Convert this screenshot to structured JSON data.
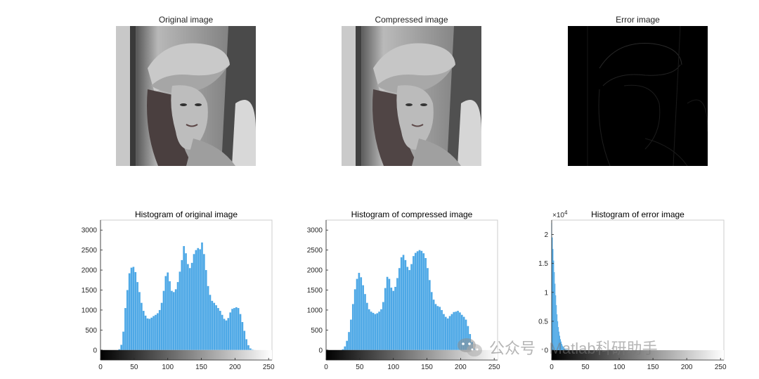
{
  "images": {
    "original_title": "Original image",
    "compressed_title": "Compressed image",
    "error_title": "Error image"
  },
  "colors": {
    "bar": "#4DA8E6",
    "bar_edge": "#3F8FCC",
    "axis": "#262626",
    "box": "#CCCCCC"
  },
  "watermark": {
    "text": "公众号 · Matlab科研助手",
    "logo": "wechat-icon"
  },
  "chart_data": [
    {
      "type": "bar",
      "title": "Histogram of original image",
      "xlim": [
        0,
        255
      ],
      "ylim": [
        -250,
        3250
      ],
      "xticks": [
        0,
        50,
        100,
        150,
        200,
        250
      ],
      "yticks": [
        0,
        500,
        1000,
        1500,
        2000,
        2500,
        3000
      ],
      "xtick_labels": [
        "0",
        "50",
        "100",
        "150",
        "200",
        "250"
      ],
      "ytick_labels": [
        "0",
        "500",
        "1000",
        "1500",
        "2000",
        "2500",
        "3000"
      ],
      "exponent_label": "",
      "colorbar": "gray",
      "x": [
        25,
        28,
        31,
        34,
        37,
        40,
        43,
        46,
        49,
        52,
        55,
        58,
        61,
        64,
        67,
        70,
        73,
        76,
        79,
        82,
        85,
        88,
        91,
        94,
        97,
        100,
        103,
        106,
        109,
        112,
        115,
        118,
        121,
        124,
        127,
        130,
        133,
        136,
        139,
        142,
        145,
        148,
        151,
        154,
        157,
        160,
        163,
        166,
        169,
        172,
        175,
        178,
        181,
        184,
        187,
        190,
        193,
        196,
        199,
        202,
        205,
        208,
        211,
        214,
        217,
        220,
        223,
        226,
        229,
        232
      ],
      "values": [
        0,
        20,
        130,
        460,
        1050,
        1500,
        1920,
        2060,
        2080,
        1950,
        1700,
        1450,
        1180,
        980,
        860,
        790,
        780,
        810,
        850,
        880,
        920,
        1000,
        1180,
        1480,
        1850,
        1940,
        1720,
        1480,
        1450,
        1520,
        1700,
        1960,
        2250,
        2600,
        2420,
        2150,
        2050,
        2180,
        2400,
        2500,
        2550,
        2520,
        2690,
        2400,
        2000,
        1600,
        1380,
        1230,
        1180,
        1120,
        1050,
        980,
        880,
        780,
        740,
        800,
        940,
        1030,
        1050,
        1070,
        1050,
        900,
        700,
        480,
        270,
        120,
        40,
        10,
        2,
        0
      ]
    },
    {
      "type": "bar",
      "title": "Histogram of compressed image",
      "xlim": [
        0,
        255
      ],
      "ylim": [
        -250,
        3250
      ],
      "xticks": [
        0,
        50,
        100,
        150,
        200,
        250
      ],
      "yticks": [
        0,
        500,
        1000,
        1500,
        2000,
        2500,
        3000
      ],
      "xtick_labels": [
        "0",
        "50",
        "100",
        "150",
        "200",
        "250"
      ],
      "ytick_labels": [
        "0",
        "500",
        "1000",
        "1500",
        "2000",
        "2500",
        "3000"
      ],
      "exponent_label": "",
      "colorbar": "gray",
      "x": [
        22,
        25,
        28,
        31,
        34,
        37,
        40,
        43,
        46,
        49,
        52,
        55,
        58,
        61,
        64,
        67,
        70,
        73,
        76,
        79,
        82,
        85,
        88,
        91,
        94,
        97,
        100,
        103,
        106,
        109,
        112,
        115,
        118,
        121,
        124,
        127,
        130,
        133,
        136,
        139,
        142,
        145,
        148,
        151,
        154,
        157,
        160,
        163,
        166,
        169,
        172,
        175,
        178,
        181,
        184,
        187,
        190,
        193,
        196,
        199,
        202,
        205,
        208,
        211,
        214,
        217,
        220
      ],
      "values": [
        0,
        20,
        90,
        230,
        450,
        760,
        1150,
        1520,
        1780,
        1930,
        1820,
        1620,
        1400,
        1180,
        1020,
        960,
        930,
        900,
        920,
        960,
        1020,
        1200,
        1550,
        1830,
        1780,
        1560,
        1480,
        1580,
        1800,
        2050,
        2320,
        2380,
        2250,
        2080,
        2000,
        2150,
        2350,
        2430,
        2470,
        2500,
        2480,
        2420,
        2300,
        2050,
        1750,
        1450,
        1260,
        1150,
        1100,
        1080,
        1000,
        900,
        830,
        790,
        850,
        900,
        950,
        960,
        980,
        940,
        880,
        830,
        760,
        600,
        400,
        200,
        40
      ]
    },
    {
      "type": "bar",
      "title": "Histogram of error image",
      "xlim": [
        0,
        255
      ],
      "ylim": [
        -0.17,
        2.25
      ],
      "xticks": [
        0,
        50,
        100,
        150,
        200,
        250
      ],
      "yticks": [
        0,
        0.5,
        1,
        1.5,
        2
      ],
      "xtick_labels": [
        "0",
        "50",
        "100",
        "150",
        "200",
        "250"
      ],
      "ytick_labels": [
        "0",
        "0.5",
        "1",
        "1.5",
        "2"
      ],
      "y_unit": "x10^4",
      "exponent_label": "×10",
      "exponent_power": "4",
      "colorbar": "gray",
      "x": [
        0,
        1,
        2,
        3,
        4,
        5,
        6,
        7,
        8,
        9,
        10,
        11,
        12,
        13,
        14,
        15,
        16,
        17,
        18,
        19,
        20,
        22,
        24,
        26,
        28
      ],
      "values": [
        2.2,
        1.95,
        1.75,
        1.55,
        1.35,
        1.15,
        0.95,
        0.78,
        0.62,
        0.5,
        0.4,
        0.32,
        0.25,
        0.19,
        0.15,
        0.11,
        0.08,
        0.06,
        0.045,
        0.03,
        0.02,
        0.012,
        0.007,
        0.003,
        0.001
      ]
    }
  ]
}
